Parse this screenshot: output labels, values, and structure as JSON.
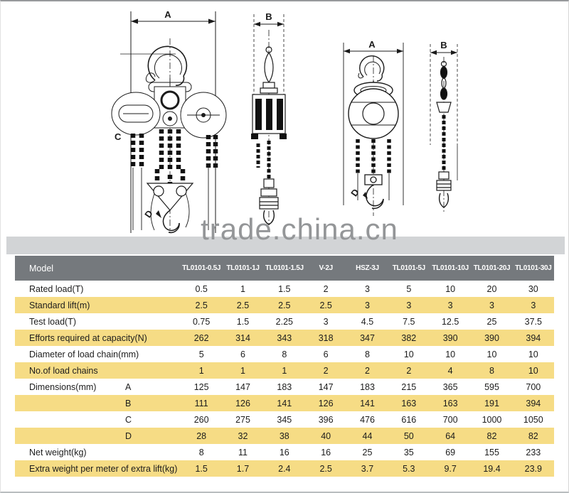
{
  "watermark": "trade.china.cn",
  "dims": {
    "a": "A",
    "b": "B",
    "c": "C",
    "d": "D"
  },
  "colors": {
    "header_bg": "#75797d",
    "row_highlight": "#f6dc85",
    "divider_band": "#d2d4d6",
    "watermark_gray": "#949698"
  },
  "table": {
    "model_label": "Model",
    "columns": [
      "TL0101-0.5J",
      "TL0101-1J",
      "TL0101-1.5J",
      "V-2J",
      "HSZ-3J",
      "TL0101-5J",
      "TL0101-10J",
      "TL0101-20J",
      "TL0101-30J"
    ],
    "rows": [
      {
        "label": "Rated load(T)",
        "sub": "",
        "values": [
          "0.5",
          "1",
          "1.5",
          "2",
          "3",
          "5",
          "10",
          "20",
          "30"
        ]
      },
      {
        "label": "Standard lift(m)",
        "sub": "",
        "values": [
          "2.5",
          "2.5",
          "2.5",
          "2.5",
          "3",
          "3",
          "3",
          "3",
          "3"
        ]
      },
      {
        "label": "Test load(T)",
        "sub": "",
        "values": [
          "0.75",
          "1.5",
          "2.25",
          "3",
          "4.5",
          "7.5",
          "12.5",
          "25",
          "37.5"
        ]
      },
      {
        "label": "Efforts required at capacity(N)",
        "sub": "",
        "values": [
          "262",
          "314",
          "343",
          "318",
          "347",
          "382",
          "390",
          "390",
          "394"
        ]
      },
      {
        "label": "Diameter of load chain(mm)",
        "sub": "",
        "values": [
          "5",
          "6",
          "8",
          "6",
          "8",
          "10",
          "10",
          "10",
          "10"
        ]
      },
      {
        "label": "No.of load chains",
        "sub": "",
        "values": [
          "1",
          "1",
          "1",
          "2",
          "2",
          "2",
          "4",
          "8",
          "10"
        ]
      },
      {
        "label": "Dimensions(mm)",
        "sub": "A",
        "values": [
          "125",
          "147",
          "183",
          "147",
          "183",
          "215",
          "365",
          "595",
          "700"
        ]
      },
      {
        "label": "",
        "sub": "B",
        "values": [
          "111",
          "126",
          "141",
          "126",
          "141",
          "163",
          "163",
          "191",
          "394"
        ]
      },
      {
        "label": "",
        "sub": "C",
        "values": [
          "260",
          "275",
          "345",
          "396",
          "476",
          "616",
          "700",
          "1000",
          "1050"
        ]
      },
      {
        "label": "",
        "sub": "D",
        "values": [
          "28",
          "32",
          "38",
          "40",
          "44",
          "50",
          "64",
          "82",
          "82"
        ]
      },
      {
        "label": "Net weight(kg)",
        "sub": "",
        "values": [
          "8",
          "11",
          "16",
          "16",
          "25",
          "35",
          "69",
          "155",
          "233"
        ]
      },
      {
        "label": "Extra weight per meter of extra lift(kg)",
        "sub": "",
        "values": [
          "1.5",
          "1.7",
          "2.4",
          "2.5",
          "3.7",
          "5.3",
          "9.7",
          "19.4",
          "23.9"
        ]
      }
    ]
  }
}
